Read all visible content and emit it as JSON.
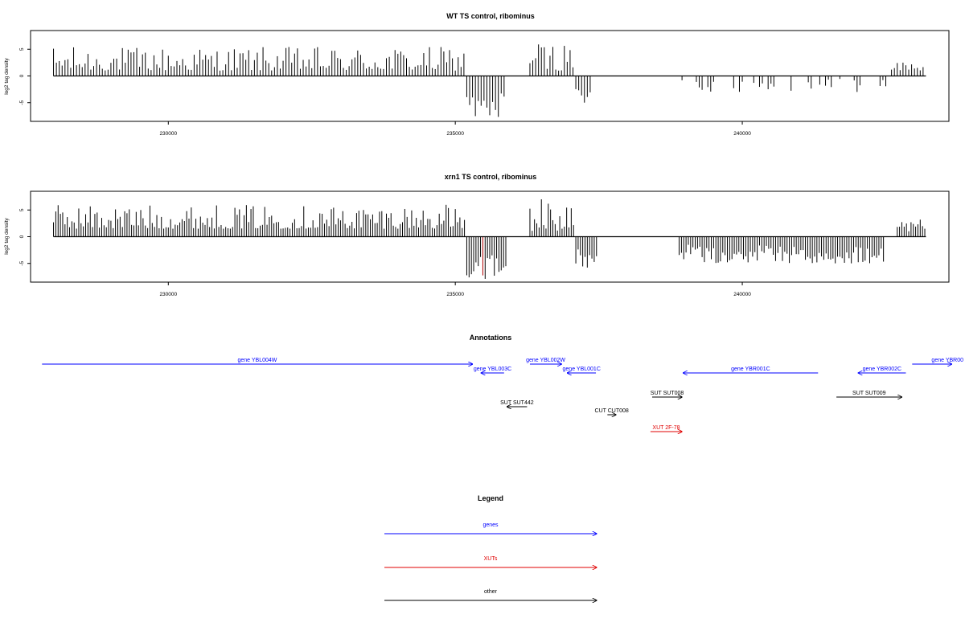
{
  "colors": {
    "gene": "#0000ff",
    "xut": "#e00000",
    "other": "#000000",
    "bar": "#000000",
    "bar_highlight": "#b00000"
  },
  "chart_data": [
    {
      "type": "bar",
      "title": "WT TS control, ribominus",
      "ylabel": "log2 tag density",
      "xlim": [
        227600,
        243600
      ],
      "ylim": [
        -8.5,
        8.5
      ],
      "x_ticks": [
        230000,
        235000,
        240000
      ],
      "x_tick_labels": [
        "230000",
        "235000",
        "240000"
      ],
      "y_ticks": [
        -5,
        0,
        5
      ],
      "y_tick_labels": [
        "-5",
        "0",
        "5"
      ],
      "grid": false,
      "bin": 50,
      "segments": [
        {
          "from": 228000,
          "to": 235200,
          "min": 1,
          "max": 5.5,
          "mode": "positive"
        },
        {
          "from": 235200,
          "to": 235900,
          "min": -8,
          "max": -3,
          "mode": "negative",
          "highlight": [
            235400,
            235800
          ]
        },
        {
          "from": 236300,
          "to": 237100,
          "min": 1,
          "max": 6.5,
          "mode": "positive"
        },
        {
          "from": 237100,
          "to": 237400,
          "min": -5,
          "max": -2,
          "mode": "negative"
        },
        {
          "from": 238900,
          "to": 242600,
          "min": -3,
          "max": -0.5,
          "mode": "sparse-negative"
        },
        {
          "from": 242600,
          "to": 243200,
          "min": 1,
          "max": 3,
          "mode": "positive"
        }
      ]
    },
    {
      "type": "bar",
      "title": "xrn1 TS control, ribominus",
      "ylabel": "log2 tag density",
      "xlim": [
        227600,
        243600
      ],
      "ylim": [
        -8.5,
        8.5
      ],
      "x_ticks": [
        230000,
        235000,
        240000
      ],
      "x_tick_labels": [
        "230000",
        "235000",
        "240000"
      ],
      "y_ticks": [
        -5,
        0,
        5
      ],
      "y_tick_labels": [
        "-5",
        "0",
        "5"
      ],
      "grid": false,
      "bin": 40,
      "segments": [
        {
          "from": 228000,
          "to": 235200,
          "min": 1.5,
          "max": 6,
          "mode": "positive"
        },
        {
          "from": 235200,
          "to": 235900,
          "min": -8,
          "max": -3,
          "mode": "negative",
          "highlight": [
            235400,
            235800
          ]
        },
        {
          "from": 236300,
          "to": 237100,
          "min": 1,
          "max": 7.5,
          "mode": "positive"
        },
        {
          "from": 237100,
          "to": 237500,
          "min": -6,
          "max": -2,
          "mode": "negative"
        },
        {
          "from": 238900,
          "to": 242500,
          "min": -5,
          "max": -1.5,
          "mode": "negative"
        },
        {
          "from": 242700,
          "to": 243200,
          "min": 1,
          "max": 3.5,
          "mode": "positive"
        }
      ]
    }
  ],
  "annotations": {
    "title": "Annotations",
    "xlim": [
      227600,
      243600
    ],
    "features": [
      {
        "label": "gene YBL004W",
        "type": "gene",
        "start": 227800,
        "end": 235300,
        "strand": "+",
        "row": 0
      },
      {
        "label": "gene YBL003C",
        "type": "gene",
        "start": 235450,
        "end": 235850,
        "strand": "-",
        "row": 1
      },
      {
        "label": "gene YBL002W",
        "type": "gene",
        "start": 236300,
        "end": 236850,
        "strand": "+",
        "row": 0
      },
      {
        "label": "gene YBL001C",
        "type": "gene",
        "start": 236950,
        "end": 237450,
        "strand": "-",
        "row": 1
      },
      {
        "label": "gene YBR001C",
        "type": "gene",
        "start": 238970,
        "end": 241320,
        "strand": "-",
        "row": 1
      },
      {
        "label": "gene YBR002C",
        "type": "gene",
        "start": 242020,
        "end": 242850,
        "strand": "-",
        "row": 1
      },
      {
        "label": "gene YBR00",
        "type": "gene",
        "start": 242960,
        "end": 243650,
        "strand": "+",
        "row": 0
      },
      {
        "label": "SUT SUT442",
        "type": "other",
        "start": 235900,
        "end": 236250,
        "strand": "-",
        "row": 3
      },
      {
        "label": "SUT SUT008",
        "type": "other",
        "start": 238430,
        "end": 238950,
        "strand": "+",
        "row": 2
      },
      {
        "label": "SUT SUT009",
        "type": "other",
        "start": 241640,
        "end": 242780,
        "strand": "+",
        "row": 2
      },
      {
        "label": "CUT CUT008",
        "type": "other",
        "start": 237650,
        "end": 237800,
        "strand": "+",
        "row": 4
      },
      {
        "label": "XUT 2F-78",
        "type": "xut",
        "start": 238400,
        "end": 238950,
        "strand": "+",
        "row": 5
      }
    ]
  },
  "legend": {
    "title": "Legend",
    "items": [
      {
        "label": "genes",
        "type": "gene"
      },
      {
        "label": "XUTs",
        "type": "xut"
      },
      {
        "label": "other",
        "type": "other"
      }
    ]
  }
}
